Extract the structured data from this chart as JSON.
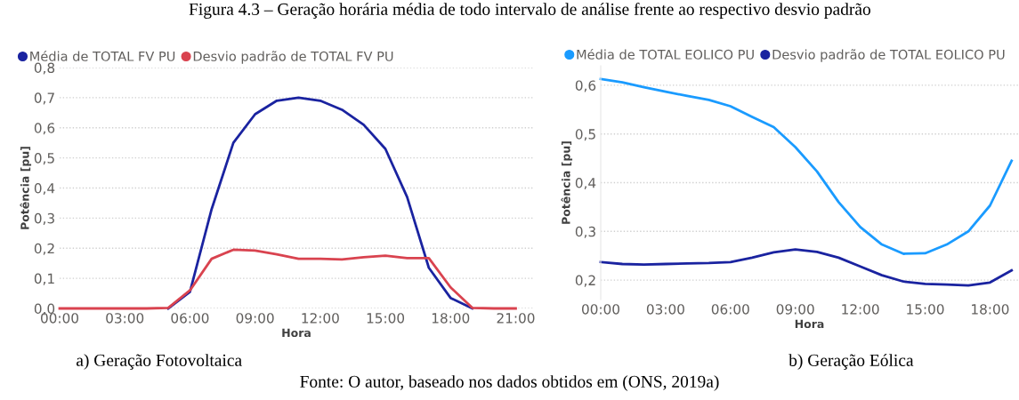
{
  "chart_data": [
    {
      "type": "line",
      "title": "Figura 4.3 – Geração horária média de todo intervalo de análise frente ao respectivo desvio padrão",
      "xlabel": "Hora",
      "ylabel": "Potência [pu]",
      "annotations": [
        "a) Geração Fotovoltaica",
        "Fonte: O autor, baseado nos dados obtidos em (ONS, 2019a)"
      ],
      "x": [
        0,
        1,
        2,
        3,
        4,
        5,
        6,
        7,
        8,
        9,
        10,
        11,
        12,
        13,
        14,
        15,
        16,
        17,
        18,
        19,
        20,
        21
      ],
      "series": [
        {
          "name": "Média de TOTAL FV PU",
          "color": "#1a23a0",
          "values": [
            null,
            null,
            null,
            null,
            null,
            0,
            0.055,
            0.33,
            0.55,
            0.645,
            0.69,
            0.7,
            0.69,
            0.66,
            0.61,
            0.53,
            0.37,
            0.135,
            0.035,
            0,
            null,
            null
          ]
        },
        {
          "name": "Desvio padrão de TOTAL FV PU",
          "color": "#d9434f",
          "values": [
            0,
            0,
            0,
            0,
            0,
            0.002,
            0.06,
            0.165,
            0.195,
            0.192,
            0.18,
            0.165,
            0.165,
            0.163,
            0.17,
            0.175,
            0.167,
            0.167,
            0.07,
            0.002,
            0,
            0
          ]
        }
      ],
      "xlim": [
        0,
        21.8
      ],
      "xticks": [
        {
          "value": 0,
          "label": "00:00"
        },
        {
          "value": 3,
          "label": "03:00"
        },
        {
          "value": 6,
          "label": "06:00"
        },
        {
          "value": 9,
          "label": "09:00"
        },
        {
          "value": 12,
          "label": "12:00"
        },
        {
          "value": 15,
          "label": "15:00"
        },
        {
          "value": 18,
          "label": "18:00"
        },
        {
          "value": 21,
          "label": "21:00"
        }
      ],
      "ylim": [
        0,
        0.8
      ],
      "yticks": [
        {
          "value": 0,
          "label": "0,0"
        },
        {
          "value": 0.1,
          "label": "0,1"
        },
        {
          "value": 0.2,
          "label": "0,2"
        },
        {
          "value": 0.3,
          "label": "0,3"
        },
        {
          "value": 0.4,
          "label": "0,4"
        },
        {
          "value": 0.5,
          "label": "0,5"
        },
        {
          "value": 0.6,
          "label": "0,6"
        },
        {
          "value": 0.7,
          "label": "0,7"
        },
        {
          "value": 0.8,
          "label": "0,8"
        }
      ],
      "grid": "y",
      "legend": "top left"
    },
    {
      "type": "line",
      "xlabel": "Hora",
      "ylabel": "Potência [pu]",
      "annotations": [
        "b) Geração Eólica"
      ],
      "x": [
        0,
        1,
        2,
        3,
        4,
        5,
        6,
        7,
        8,
        9,
        10,
        11,
        12,
        13,
        14,
        15,
        16,
        17,
        18,
        19
      ],
      "series": [
        {
          "name": "Média de TOTAL EOLICO PU",
          "color": "#1a9bff",
          "values": [
            0.613,
            0.606,
            0.596,
            0.587,
            0.578,
            0.57,
            0.557,
            0.535,
            0.514,
            0.473,
            0.423,
            0.36,
            0.309,
            0.273,
            0.254,
            0.255,
            0.273,
            0.3,
            0.353,
            0.445
          ]
        },
        {
          "name": "Desvio padrão de TOTAL EOLICO PU",
          "color": "#1a23a0",
          "values": [
            0.237,
            0.233,
            0.232,
            0.233,
            0.234,
            0.235,
            0.237,
            0.246,
            0.257,
            0.263,
            0.258,
            0.246,
            0.228,
            0.21,
            0.197,
            0.192,
            0.191,
            0.189,
            0.195,
            0.22
          ]
        }
      ],
      "xlim": [
        0,
        19.3
      ],
      "xticks": [
        {
          "value": 0,
          "label": "00:00"
        },
        {
          "value": 3,
          "label": "03:00"
        },
        {
          "value": 6,
          "label": "06:00"
        },
        {
          "value": 9,
          "label": "09:00"
        },
        {
          "value": 12,
          "label": "12:00"
        },
        {
          "value": 15,
          "label": "15:00"
        },
        {
          "value": 18,
          "label": "18:00"
        }
      ],
      "ylim": [
        0.16,
        0.64
      ],
      "yticks": [
        {
          "value": 0.2,
          "label": "0,2"
        },
        {
          "value": 0.3,
          "label": "0,3"
        },
        {
          "value": 0.4,
          "label": "0,4"
        },
        {
          "value": 0.5,
          "label": "0,5"
        },
        {
          "value": 0.6,
          "label": "0,6"
        }
      ],
      "grid": "y",
      "legend": "top left"
    }
  ]
}
